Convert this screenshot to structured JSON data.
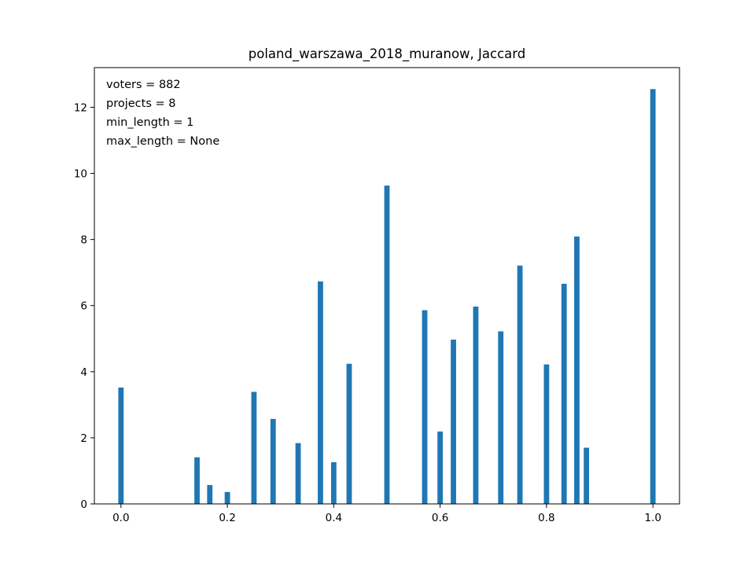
{
  "chart_data": {
    "type": "bar",
    "title": "poland_warszawa_2018_muranow, Jaccard",
    "xlabel": "",
    "ylabel": "",
    "xlim": [
      -0.05,
      1.05
    ],
    "ylim": [
      0,
      13.2
    ],
    "xticks": [
      0.0,
      0.2,
      0.4,
      0.6,
      0.8,
      1.0
    ],
    "xtick_labels": [
      "0.0",
      "0.2",
      "0.4",
      "0.6",
      "0.8",
      "1.0"
    ],
    "yticks": [
      0,
      2,
      4,
      6,
      8,
      10,
      12
    ],
    "ytick_labels": [
      "0",
      "2",
      "4",
      "6",
      "8",
      "10",
      "12"
    ],
    "grid": false,
    "bar_color": "#1f77b4",
    "annotations": [
      "voters = 882",
      "projects = 8",
      "min_length = 1",
      "max_length = None"
    ],
    "x": [
      0.0,
      0.143,
      0.167,
      0.2,
      0.25,
      0.286,
      0.333,
      0.375,
      0.4,
      0.429,
      0.5,
      0.571,
      0.6,
      0.625,
      0.667,
      0.714,
      0.75,
      0.8,
      0.833,
      0.857,
      0.875,
      1.0
    ],
    "values": [
      3.52,
      1.41,
      0.57,
      0.36,
      3.39,
      2.57,
      1.84,
      6.73,
      1.26,
      4.24,
      9.63,
      5.86,
      2.19,
      4.97,
      5.97,
      5.22,
      7.21,
      4.22,
      6.66,
      8.09,
      1.7,
      12.55
    ]
  }
}
